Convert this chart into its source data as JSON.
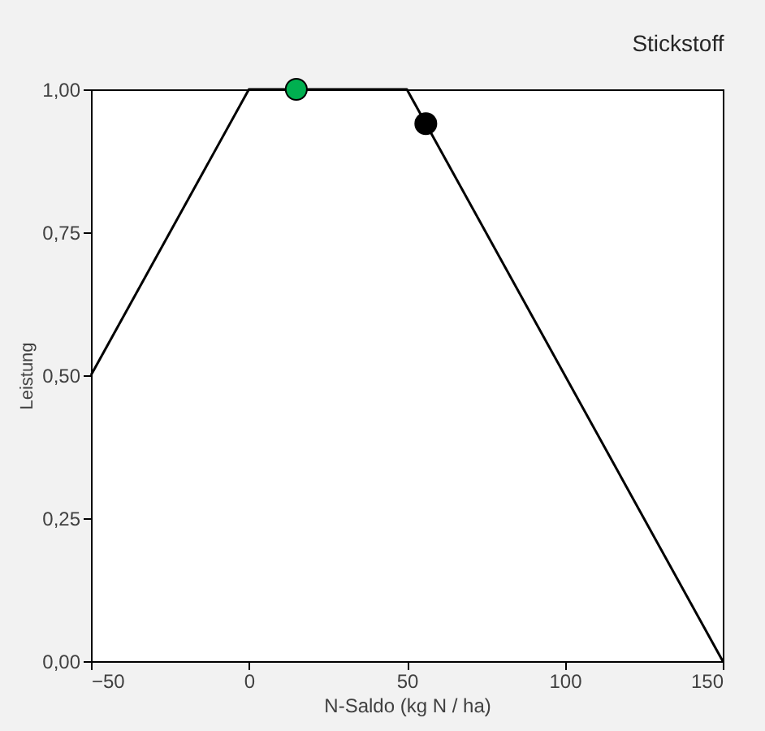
{
  "chart_data": {
    "type": "line",
    "title": "Stickstoff",
    "xlabel": "N-Saldo (kg N / ha)",
    "ylabel": "Leistung",
    "xlim": [
      -50,
      150
    ],
    "xticks": [
      -50,
      0,
      50,
      100,
      150
    ],
    "ylim": [
      0,
      1
    ],
    "yticks": [
      {
        "value": 0,
        "label": "0,00"
      },
      {
        "value": 0.25,
        "label": "0,25"
      },
      {
        "value": 0.5,
        "label": "0,50"
      },
      {
        "value": 0.75,
        "label": "0,75"
      },
      {
        "value": 1,
        "label": "1,00"
      }
    ],
    "grid": false,
    "series": [
      {
        "color": "#000000",
        "marker": "none",
        "x": [
          -50,
          0,
          50,
          150
        ],
        "values": [
          0.5,
          1,
          1,
          0
        ]
      },
      {
        "type": "scatter",
        "marker": "circle",
        "color": "#00b050",
        "x": [
          15
        ],
        "values": [
          1.0
        ]
      },
      {
        "type": "scatter",
        "marker": "circle",
        "color": "#000000",
        "x": [
          56
        ],
        "values": [
          0.94
        ]
      }
    ]
  }
}
